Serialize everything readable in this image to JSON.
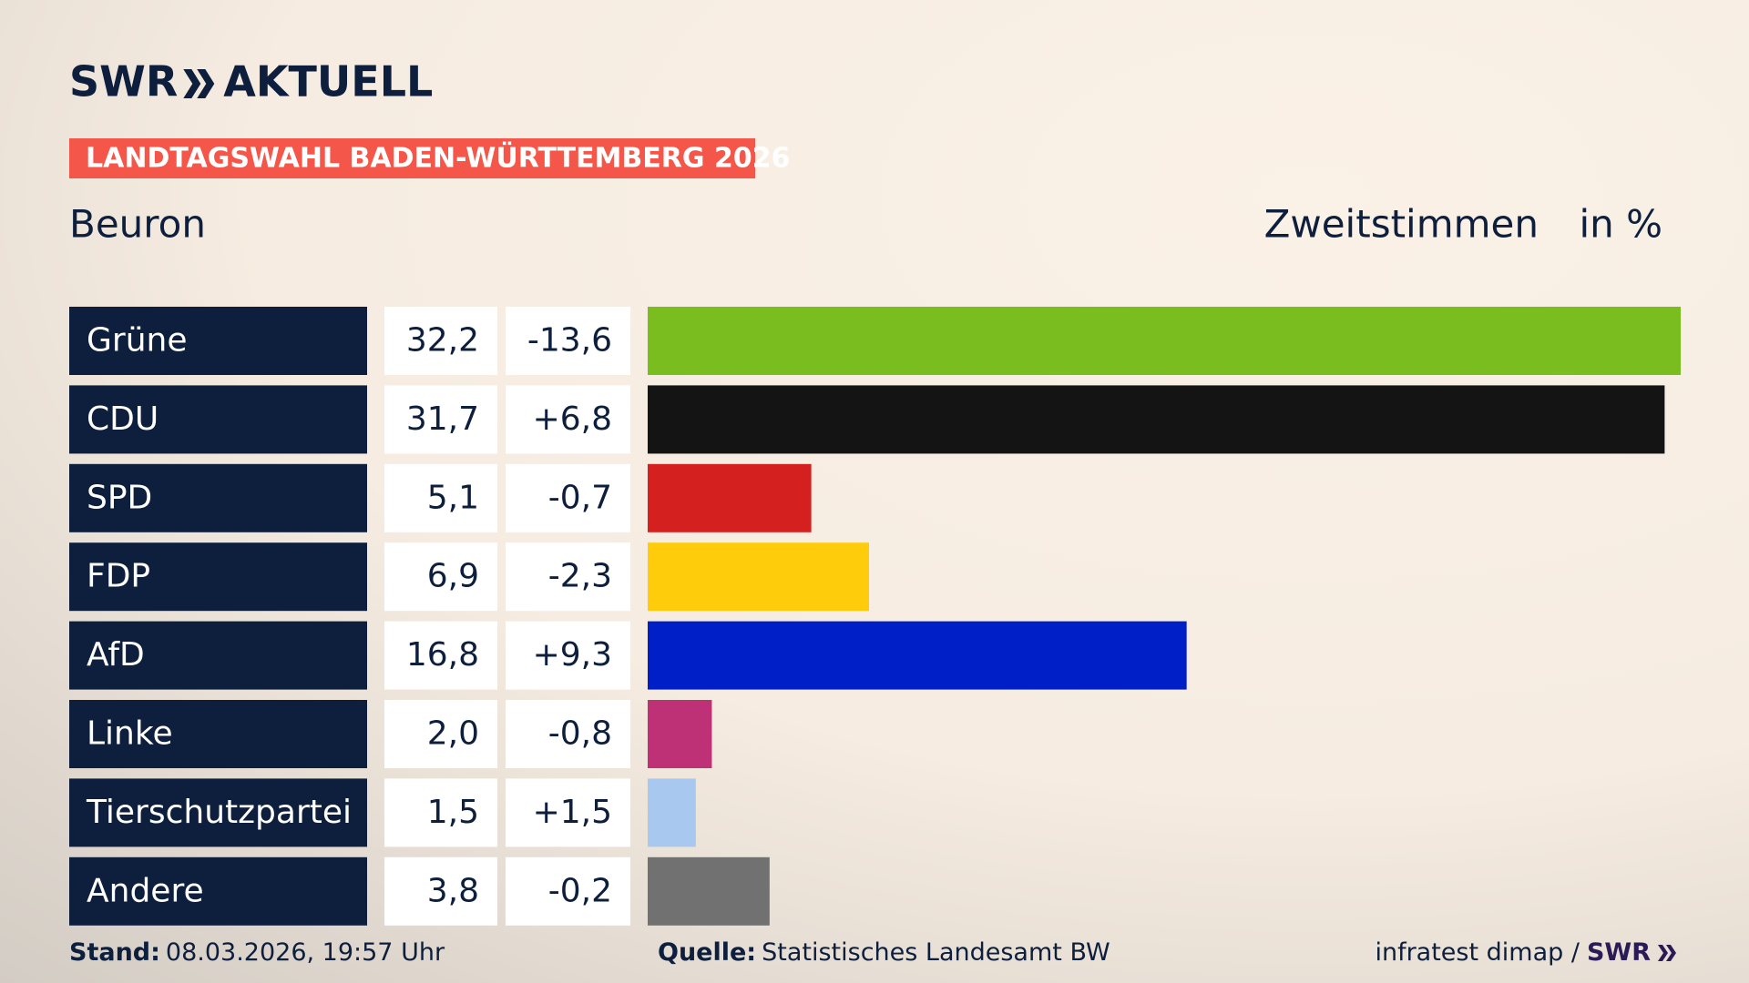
{
  "chart_data": {
    "type": "bar",
    "orientation": "horizontal",
    "logo": "SWR",
    "logo_suffix": "AKTUELL",
    "banner": "LANDTAGSWAHL BADEN-WÜRTTEMBERG 2026",
    "title": "Beuron",
    "subtitle": "Zweitstimmen",
    "unit_label": "in %",
    "categories": [
      "Grüne",
      "CDU",
      "SPD",
      "FDP",
      "AfD",
      "Linke",
      "Tierschutzpartei",
      "Andere"
    ],
    "series": [
      {
        "name": "Zweitstimmen",
        "values": [
          32.2,
          31.7,
          5.1,
          6.9,
          16.8,
          2.0,
          1.5,
          3.8
        ],
        "value_labels": [
          "32,2",
          "31,7",
          "5,1",
          "6,9",
          "16,8",
          "2,0",
          "1,5",
          "3,8"
        ],
        "colors": [
          "#7abd1e",
          "#141414",
          "#d52020",
          "#fecc0a",
          "#001fc6",
          "#be3177",
          "#a9c8f0",
          "#717171"
        ]
      },
      {
        "values": [
          -13.6,
          6.8,
          -0.7,
          -2.3,
          9.3,
          -0.8,
          1.5,
          -0.2
        ],
        "value_labels": [
          "-13,6",
          "+6,8",
          "-0,7",
          "-2,3",
          "+9,3",
          "-0,8",
          "+1,5",
          "-0,2"
        ]
      }
    ],
    "footer": {
      "stand_label": "Stand:",
      "stand": "08.03.2026, 19:57 Uhr",
      "source_label": "Quelle:",
      "source": "Statistisches Landesamt BW",
      "credit": "infratest dimap /",
      "credit_brand": "SWR"
    }
  }
}
